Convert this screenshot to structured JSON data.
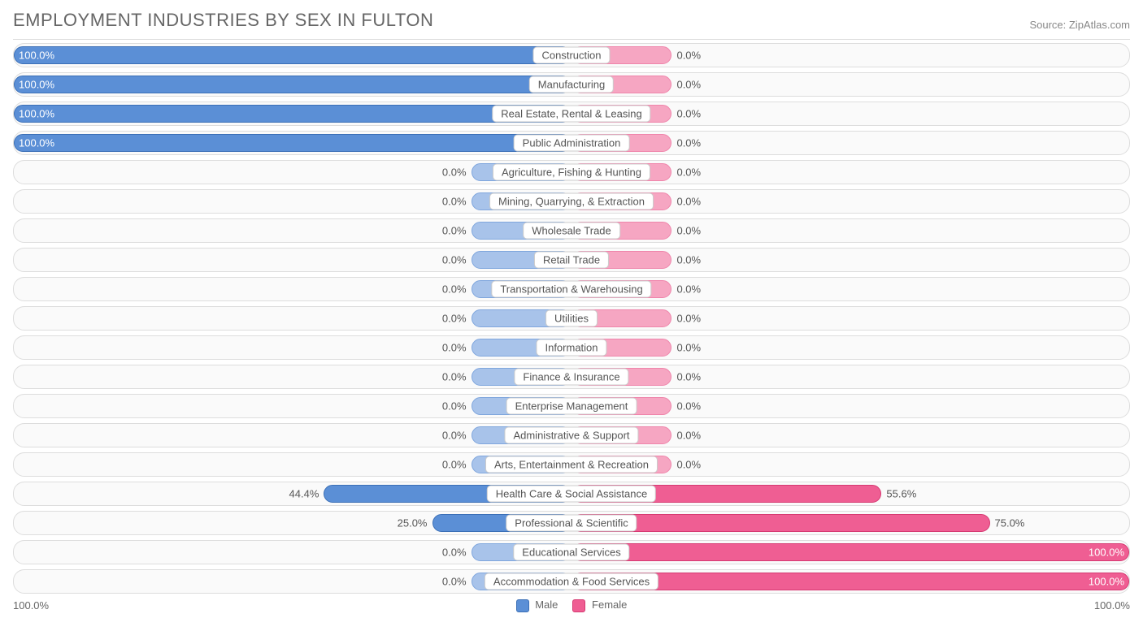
{
  "title": "EMPLOYMENT INDUSTRIES BY SEX IN FULTON",
  "source": "Source: ZipAtlas.com",
  "axis": {
    "left": "100.0%",
    "right": "100.0%"
  },
  "legend": {
    "male": {
      "label": "Male",
      "fill": "#5b8fd6",
      "border": "#3b6fb6"
    },
    "female": {
      "label": "Female",
      "fill": "#ef5e93",
      "border": "#d63a72"
    }
  },
  "style": {
    "male_full": {
      "fill": "#5b8fd6",
      "border": "#3b6fb6"
    },
    "male_zero": {
      "fill": "#a8c3ea",
      "border": "#7fa6dd"
    },
    "female_full": {
      "fill": "#ef5e93",
      "border": "#d63a72"
    },
    "female_zero": {
      "fill": "#f6a6c2",
      "border": "#ef85ab"
    },
    "zero_bar_width_pct": 18,
    "row_bg": "#fafafa",
    "row_border": "#dddddd",
    "label_bg": "#ffffff",
    "label_border": "#cccccc",
    "text_color": "#555555"
  },
  "rows": [
    {
      "label": "Construction",
      "male": 100.0,
      "female": 0.0
    },
    {
      "label": "Manufacturing",
      "male": 100.0,
      "female": 0.0
    },
    {
      "label": "Real Estate, Rental & Leasing",
      "male": 100.0,
      "female": 0.0
    },
    {
      "label": "Public Administration",
      "male": 100.0,
      "female": 0.0
    },
    {
      "label": "Agriculture, Fishing & Hunting",
      "male": 0.0,
      "female": 0.0
    },
    {
      "label": "Mining, Quarrying, & Extraction",
      "male": 0.0,
      "female": 0.0
    },
    {
      "label": "Wholesale Trade",
      "male": 0.0,
      "female": 0.0
    },
    {
      "label": "Retail Trade",
      "male": 0.0,
      "female": 0.0
    },
    {
      "label": "Transportation & Warehousing",
      "male": 0.0,
      "female": 0.0
    },
    {
      "label": "Utilities",
      "male": 0.0,
      "female": 0.0
    },
    {
      "label": "Information",
      "male": 0.0,
      "female": 0.0
    },
    {
      "label": "Finance & Insurance",
      "male": 0.0,
      "female": 0.0
    },
    {
      "label": "Enterprise Management",
      "male": 0.0,
      "female": 0.0
    },
    {
      "label": "Administrative & Support",
      "male": 0.0,
      "female": 0.0
    },
    {
      "label": "Arts, Entertainment & Recreation",
      "male": 0.0,
      "female": 0.0
    },
    {
      "label": "Health Care & Social Assistance",
      "male": 44.4,
      "female": 55.6
    },
    {
      "label": "Professional & Scientific",
      "male": 25.0,
      "female": 75.0
    },
    {
      "label": "Educational Services",
      "male": 0.0,
      "female": 100.0
    },
    {
      "label": "Accommodation & Food Services",
      "male": 0.0,
      "female": 100.0
    }
  ]
}
